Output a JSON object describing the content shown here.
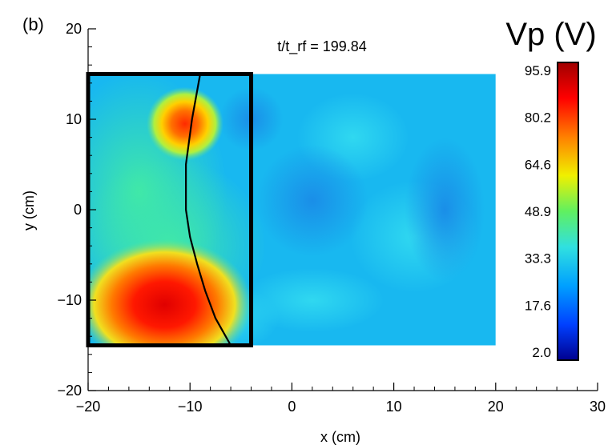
{
  "panel_label": "(b)",
  "chart_data": {
    "type": "heatmap",
    "title": "t/t_rf = 199.84",
    "xlabel": "x (cm)",
    "ylabel": "y (cm)",
    "xlim": [
      -20,
      30
    ],
    "ylim": [
      -20,
      20
    ],
    "x_ticks": [
      "−20",
      "−10",
      "0",
      "10",
      "20",
      "30"
    ],
    "y_ticks": [
      "20",
      "10",
      "0",
      "−10",
      "−20"
    ],
    "data_extent": {
      "x": [
        -20,
        20
      ],
      "y": [
        -15,
        15
      ]
    },
    "colorbar": {
      "title": "Vp (V)",
      "min": 2.0,
      "max": 95.9,
      "labels": [
        "95.9",
        "80.2",
        "64.6",
        "48.9",
        "33.3",
        "17.6",
        "2.0"
      ]
    },
    "background_level_V": 30,
    "hot_spots": [
      {
        "x": -10.5,
        "y": 9.5,
        "peak_V": 80
      },
      {
        "x": -12.5,
        "y": -10.5,
        "peak_V": 92
      }
    ],
    "highlight_box": {
      "x": [
        -20,
        -4
      ],
      "y": [
        -15,
        15
      ]
    },
    "boundary_curve": {
      "x": [
        -9.0,
        -9.8,
        -10.4,
        -10.4,
        -10.0,
        -9.3,
        -8.5,
        -7.5,
        -6.5,
        -6.0
      ],
      "y": [
        15,
        10,
        5,
        0,
        -3,
        -6,
        -9,
        -12,
        -14,
        -15
      ]
    },
    "colors": {
      "scale": [
        "#00008f",
        "#0040ff",
        "#00a0ff",
        "#30e0e0",
        "#60f060",
        "#f0f000",
        "#ff8000",
        "#ff0000",
        "#a00000"
      ]
    }
  }
}
